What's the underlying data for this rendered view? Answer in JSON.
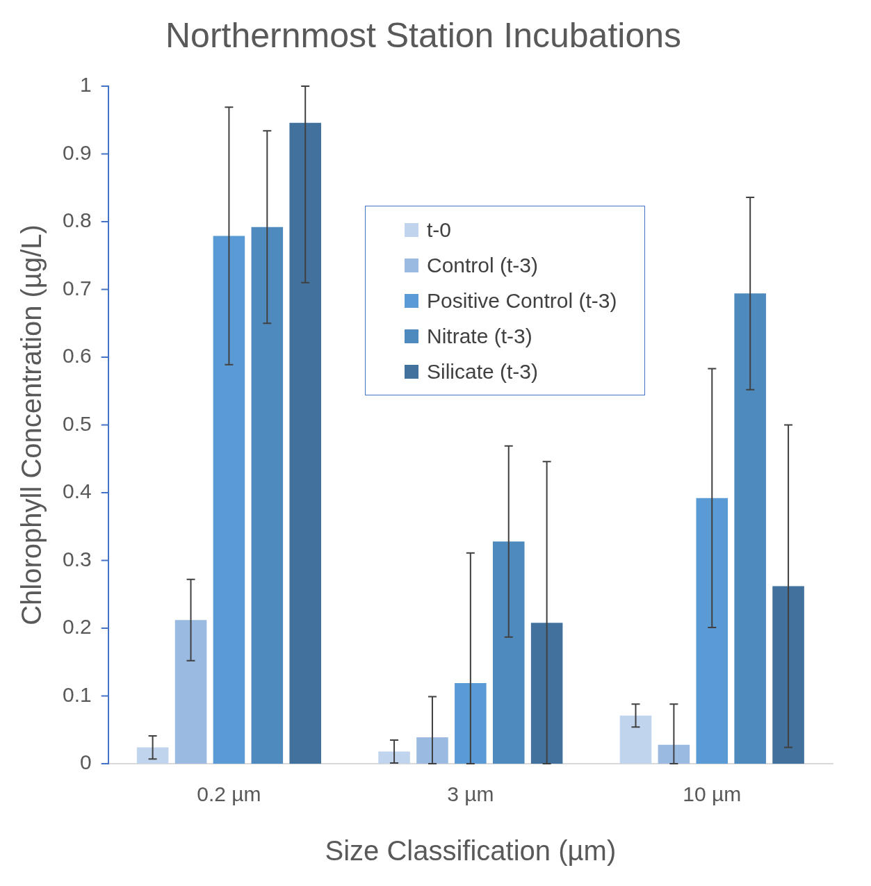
{
  "chart_data": {
    "type": "bar",
    "title": "Northernmost Station Incubations",
    "xlabel": "Size Classification (µm)",
    "ylabel": "Chlorophyll Concentration (µg/L)",
    "categories": [
      "0.2 µm",
      "3 µm",
      "10 µm"
    ],
    "series": [
      {
        "name": "t-0",
        "color": "#c0d4ed",
        "values": [
          0.024,
          0.018,
          0.071
        ],
        "errors": [
          0.017,
          0.017,
          0.017
        ]
      },
      {
        "name": "Control (t-3)",
        "color": "#9bbae1",
        "values": [
          0.212,
          0.039,
          0.028
        ],
        "errors": [
          0.06,
          [
            0,
            0.099
          ],
          [
            0,
            0.088
          ]
        ]
      },
      {
        "name": "Positive Control (t-3)",
        "color": "#5b9bd5",
        "values": [
          0.779,
          0.119,
          0.392
        ],
        "errors": [
          0.19,
          [
            0,
            0.311
          ],
          0.191
        ]
      },
      {
        "name": "Nitrate (t-3)",
        "color": "#4f8abf",
        "values": [
          0.792,
          0.328,
          0.694
        ],
        "errors": [
          0.142,
          0.141,
          0.142
        ]
      },
      {
        "name": "Silicate (t-3)",
        "color": "#41719c",
        "values": [
          0.946,
          0.208,
          0.262
        ],
        "errors": [
          [
            0.71,
            1.0
          ],
          [
            0,
            0.446
          ],
          0.238
        ]
      }
    ],
    "ylim": [
      0,
      1
    ],
    "yticks": [
      0,
      0.1,
      0.2,
      0.3,
      0.4,
      0.5,
      0.6,
      0.7,
      0.8,
      0.9,
      1
    ],
    "grid": false,
    "legend": "top"
  }
}
